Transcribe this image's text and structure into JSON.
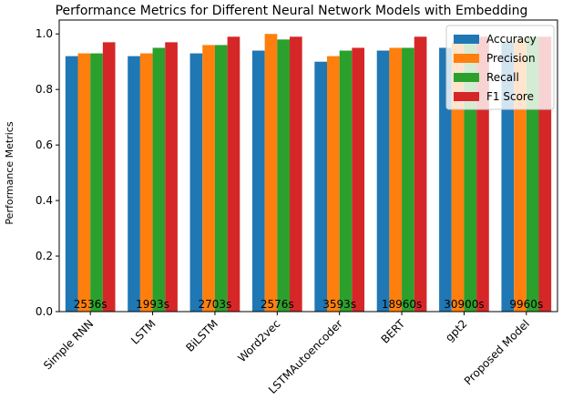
{
  "chart_data": {
    "type": "bar",
    "title": "Performance Metrics for Different Neural Network Models with Embedding",
    "y_label": "Performance Metrics",
    "categories": [
      "Simple RNN",
      "LSTM",
      "BiLSTM",
      "Word2vec",
      "LSTMAutoencoder",
      "BERT",
      "gpt2",
      "Proposed Model"
    ],
    "series": [
      {
        "name": "Accuracy",
        "color": "#1f77b4",
        "values": [
          0.92,
          0.92,
          0.93,
          0.94,
          0.9,
          0.94,
          0.95,
          0.97
        ]
      },
      {
        "name": "Precision",
        "color": "#ff7f0e",
        "values": [
          0.93,
          0.93,
          0.96,
          1.0,
          0.92,
          0.95,
          0.97,
          0.98
        ]
      },
      {
        "name": "Recall",
        "color": "#2ca02c",
        "values": [
          0.93,
          0.95,
          0.96,
          0.98,
          0.94,
          0.95,
          0.98,
          0.99
        ]
      },
      {
        "name": "F1 Score",
        "color": "#d62728",
        "values": [
          0.97,
          0.97,
          0.99,
          0.99,
          0.95,
          0.99,
          0.99,
          0.99
        ]
      }
    ],
    "annotations": [
      "2536s",
      "1993s",
      "2703s",
      "2576s",
      "3593s",
      "18960s",
      "30900s",
      "9960s"
    ],
    "ylim": [
      0,
      1.05
    ],
    "yticks": [
      {
        "value": 0,
        "label": "0.0"
      },
      0.2,
      0.4,
      0.6,
      0.8,
      {
        "value": 1,
        "label": "1.0"
      }
    ],
    "legend": "upper right"
  }
}
